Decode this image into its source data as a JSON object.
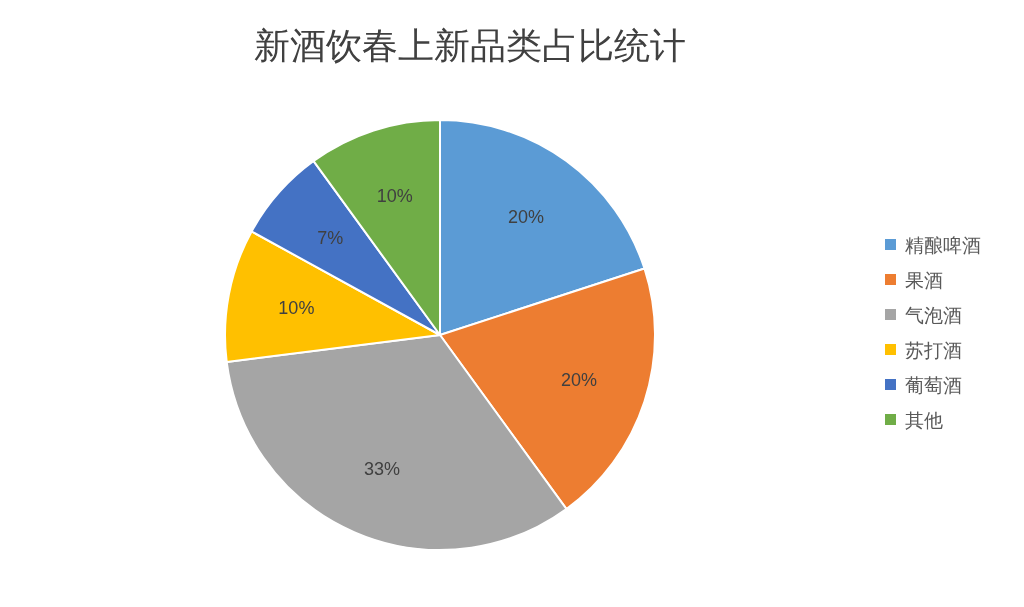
{
  "chart_data": {
    "type": "pie",
    "title": "新酒饮春上新品类占比统计",
    "categories": [
      "精酿啤酒",
      "果酒",
      "气泡酒",
      "苏打酒",
      "葡萄酒",
      "其他"
    ],
    "values": [
      20,
      20,
      33,
      10,
      7,
      10
    ],
    "colors": [
      "#5b9bd5",
      "#ed7d31",
      "#a5a5a5",
      "#ffc000",
      "#4472c4",
      "#70ad47"
    ],
    "value_labels": [
      "20%",
      "20%",
      "33%",
      "10%",
      "7%",
      "10%"
    ],
    "legend": "right"
  }
}
